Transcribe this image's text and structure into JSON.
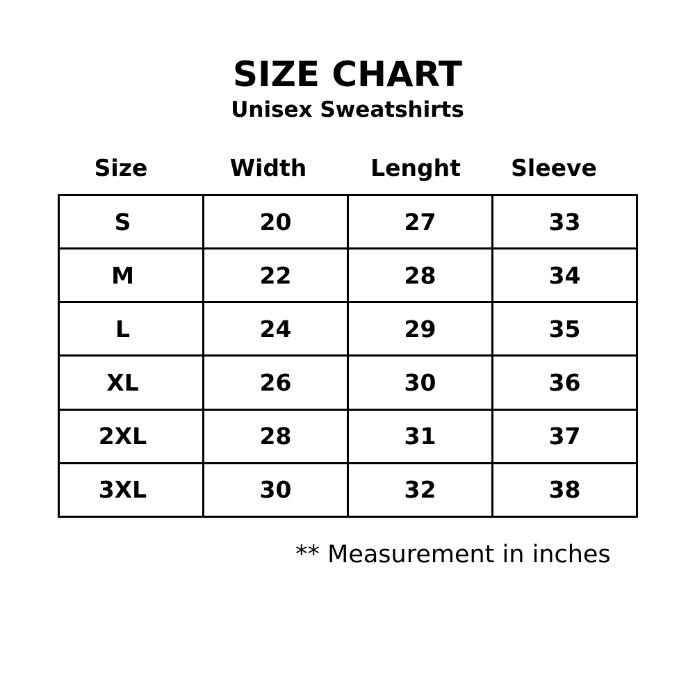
{
  "title": "SIZE CHART",
  "subtitle": "Unisex Sweatshirts",
  "columns": [
    "Size",
    "Width",
    "Lenght",
    "Sleeve"
  ],
  "rows": [
    [
      "S",
      "20",
      "27",
      "33"
    ],
    [
      "M",
      "22",
      "28",
      "34"
    ],
    [
      "L",
      "24",
      "29",
      "35"
    ],
    [
      "XL",
      "26",
      "30",
      "36"
    ],
    [
      "2XL",
      "28",
      "31",
      "37"
    ],
    [
      "3XL",
      "30",
      "32",
      "38"
    ]
  ],
  "note": "** Measurement in inches"
}
